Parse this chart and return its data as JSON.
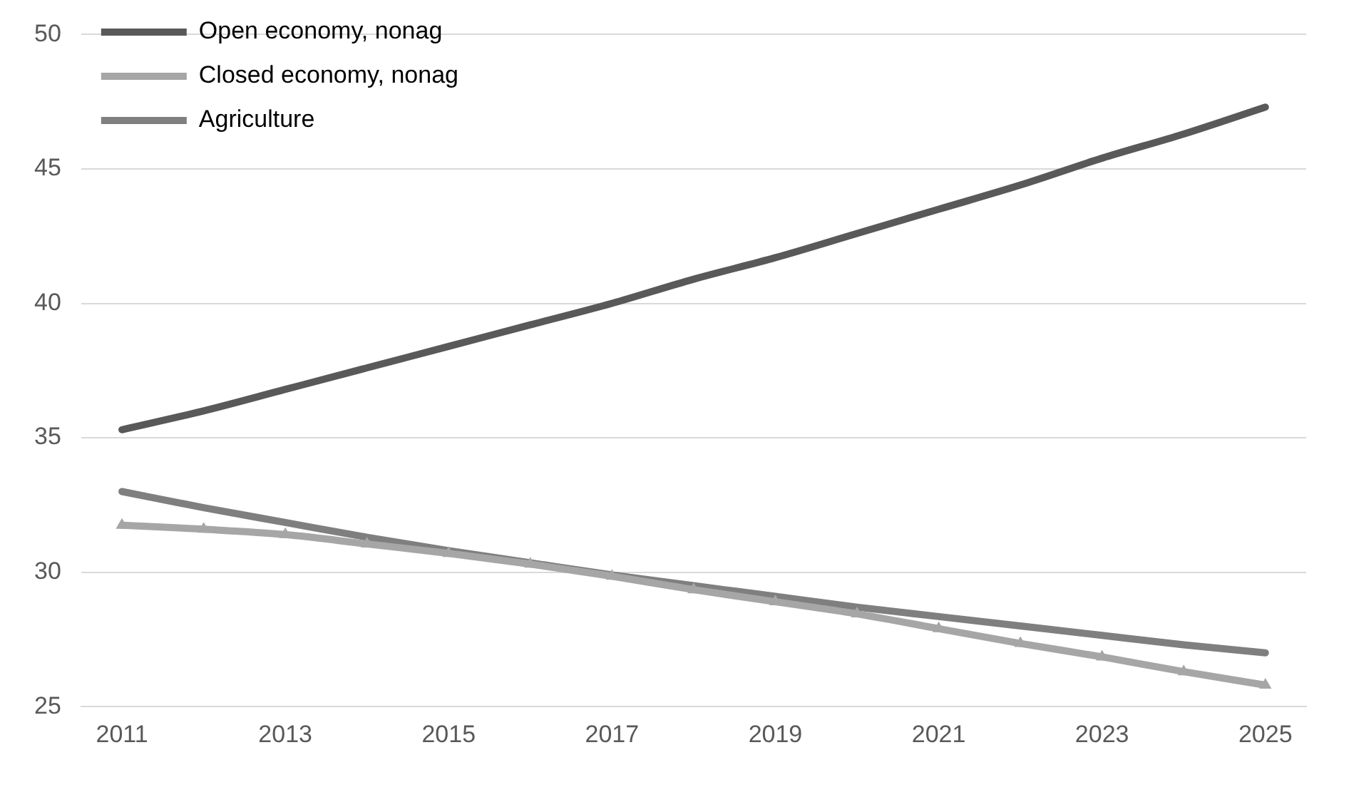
{
  "chart_data": {
    "type": "line",
    "categories": [
      "2011",
      null,
      "2013",
      null,
      "2015",
      null,
      "2017",
      null,
      "2019",
      null,
      "2021",
      null,
      "2023",
      null,
      "2025"
    ],
    "ylim": [
      25,
      50
    ],
    "yticks": [
      25,
      30,
      35,
      40,
      45,
      50
    ],
    "grid": "y",
    "legend": "top left",
    "line_style": "solid",
    "series": [
      {
        "name": "Open economy, nonag",
        "color": "#595959",
        "marker": "none",
        "values": [
          35.3,
          36.0,
          36.8,
          37.6,
          38.4,
          39.2,
          40.0,
          40.9,
          41.7,
          42.6,
          43.5,
          44.4,
          45.4,
          46.3,
          47.3
        ]
      },
      {
        "name": "Closed economy, nonag",
        "color": "#a6a6a6",
        "marker": "triangle",
        "values": [
          31.75,
          31.6,
          31.4,
          31.05,
          30.7,
          30.3,
          29.85,
          29.35,
          28.9,
          28.45,
          27.9,
          27.35,
          26.85,
          26.3,
          25.8
        ]
      },
      {
        "name": "Agriculture",
        "color": "#7f7f7f",
        "marker": "none",
        "values": [
          33.0,
          32.4,
          31.85,
          31.3,
          30.8,
          30.35,
          29.9,
          29.5,
          29.1,
          28.7,
          28.35,
          28.0,
          27.65,
          27.3,
          27.0
        ]
      }
    ]
  }
}
